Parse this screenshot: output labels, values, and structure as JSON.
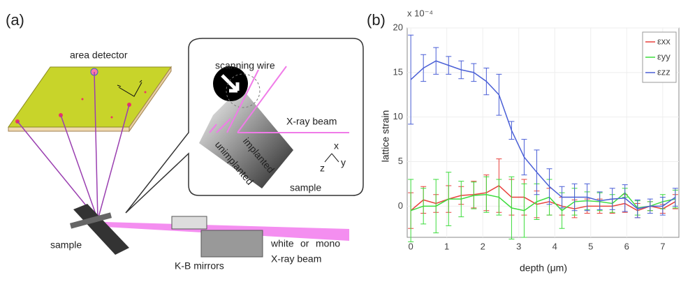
{
  "diagram": {
    "panel": "(a)",
    "detector": "area detector",
    "wire": "scanning wire",
    "beam_inset": "X-ray beam",
    "implanted": "implanted",
    "unimplanted": "unimplanted",
    "sample_inset": "sample",
    "axis_x": "x",
    "axis_y": "y",
    "axis_z": "z",
    "sample": "sample",
    "mirrors": "K-B mirrors",
    "white": "white",
    "or": "or",
    "mono": "mono",
    "beam": "X-ray beam"
  },
  "chart_data": {
    "type": "line",
    "panel": "(b)",
    "multiplier": "x 10⁻⁴",
    "x_label": "depth (μm)",
    "y_label": "lattice strain",
    "x": [
      0,
      0.35,
      0.7,
      1.05,
      1.4,
      1.75,
      2.1,
      2.45,
      2.8,
      3.15,
      3.5,
      3.85,
      4.2,
      4.55,
      4.9,
      5.25,
      5.6,
      5.95,
      6.3,
      6.65,
      7.0,
      7.35
    ],
    "series": [
      {
        "name": "εxx",
        "color": "#e8413c",
        "values": [
          -0.5,
          0.7,
          0.3,
          0.8,
          1.2,
          1.3,
          1.5,
          2.3,
          1.0,
          1.0,
          0.2,
          0.5,
          0,
          -0.3,
          0,
          0,
          0,
          0.3,
          -0.5,
          0,
          -0.3,
          0.5
        ],
        "errors": [
          2,
          1.5,
          1,
          1.5,
          1,
          1.5,
          2,
          3,
          2,
          2,
          1.5,
          1.5,
          1,
          1,
          0.8,
          0.8,
          0.8,
          1,
          0.8,
          0.5,
          0.5,
          0.8
        ]
      },
      {
        "name": "εyy",
        "color": "#3ddc3d",
        "values": [
          -0.5,
          0,
          0,
          0.8,
          0.8,
          1.2,
          1.3,
          1.0,
          -0.2,
          -0.5,
          0.5,
          1.0,
          -0.5,
          0.5,
          0.6,
          0.5,
          0.3,
          1.5,
          -0.2,
          0,
          0.5,
          0.8
        ],
        "errors": [
          3.5,
          2,
          3,
          3,
          2,
          1.5,
          2,
          2,
          3.5,
          3,
          2,
          2,
          2,
          1.5,
          1,
          1,
          1,
          0.5,
          0.8,
          0.5,
          0.8,
          1
        ]
      },
      {
        "name": "εzz",
        "color": "#4a5fd6",
        "values": [
          14.2,
          15.5,
          16.3,
          15.8,
          15.3,
          15.0,
          14.0,
          12.5,
          8.5,
          5.5,
          3.8,
          2.2,
          1.0,
          1.0,
          1.0,
          0.6,
          0.8,
          0.9,
          -0.3,
          0,
          0,
          1.0
        ],
        "errors": [
          5,
          1.5,
          1.5,
          1,
          1,
          1,
          1.5,
          2.3,
          1,
          2,
          2.5,
          2,
          1.2,
          1.5,
          1.5,
          1,
          1.2,
          1.5,
          1,
          0.8,
          1,
          1
        ]
      }
    ],
    "xlim": [
      -0.1,
      7.45
    ],
    "xticks": [
      0,
      1,
      2,
      3,
      4,
      5,
      6,
      7
    ],
    "ylim": [
      -3.5,
      20
    ],
    "yticks": [
      0,
      5,
      10,
      15,
      20
    ],
    "grid": true,
    "legend": "top-right"
  }
}
